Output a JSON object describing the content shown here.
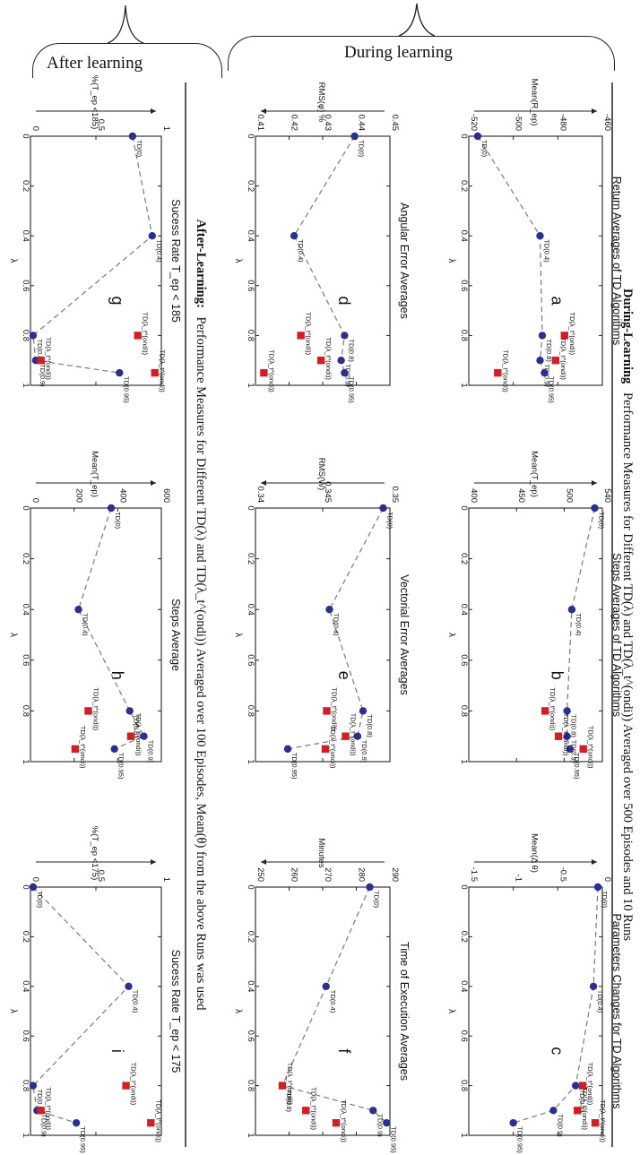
{
  "headers": {
    "after_learning": "After learning",
    "during_learning": "During learning"
  },
  "figure_titles": {
    "during_bold": "During-Learning",
    "during_rest": "Performance Measures for Different TD(λ) and TD(λ_t^(ondi)) Averaged over 500 Episodes and 10 Runs",
    "after_bold": "After-Learning:",
    "after_rest": "Performance Measures for Different TD(λ) and TD(λ_t^(ondi)) Averaged over 100 Episodes, Mean(θ) from the above Runs was used"
  },
  "colors": {
    "blue_marker": "#2b2f8f",
    "red_marker": "#d21f26",
    "dash_line": "#7a7a7a"
  },
  "chart_data": [
    {
      "id": "a",
      "type": "line",
      "letter": "a",
      "title": "Return Averages of TD Algorithms",
      "xlabel": "λ",
      "ylabel": "Mean(R_ep)",
      "xlim": [
        0,
        1
      ],
      "ylim": [
        -520,
        -460
      ],
      "xticks": [
        "0",
        "0.2",
        "0.4",
        "0.6",
        "0.8",
        "1"
      ],
      "yticks": [
        -520,
        -500,
        -480,
        -460
      ],
      "series": [
        {
          "kind": "td",
          "x": [
            0,
            0.4,
            0.8,
            0.9,
            0.95
          ],
          "y": [
            -516,
            -488,
            -487,
            -488,
            -486
          ],
          "labels": [
            "TD(0)",
            "TD(0.4)",
            "TD(0.8)",
            "TD(0.9)",
            "TD(0.95)"
          ]
        },
        {
          "kind": "adaptive",
          "x": [
            0.8,
            0.9,
            0.95
          ],
          "y": [
            -477,
            -481,
            -507
          ],
          "labels": [
            "TD(λ_t^(ondi))",
            "TD(λ_t^(ondi))",
            "TD(λ_t^(ondi))"
          ]
        }
      ]
    },
    {
      "id": "b",
      "type": "line",
      "letter": "b",
      "title": "Steps Averages of TD Algorithms",
      "xlabel": "λ",
      "ylabel": "Mean(T_ep)",
      "xlim": [
        0,
        1
      ],
      "ylim": [
        400,
        540
      ],
      "xticks": [
        "0",
        "0.2",
        "0.4",
        "0.6",
        "0.8",
        "1"
      ],
      "yticks": [
        400,
        450,
        500,
        540
      ],
      "series": [
        {
          "kind": "td",
          "x": [
            0,
            0.4,
            0.8,
            0.9,
            0.95
          ],
          "y": [
            532,
            508,
            503,
            503,
            506
          ],
          "labels": [
            "TD(0)",
            "TD(0.4)",
            "TD(0.8)",
            "TD(0.9)",
            "TD(0.95)"
          ]
        },
        {
          "kind": "adaptive",
          "x": [
            0.8,
            0.9,
            0.95
          ],
          "y": [
            480,
            494,
            520
          ],
          "labels": [
            "TD(λ_t^(ondi))",
            "TD(λ_t^(ondi))",
            "TD(λ_t^(ondi))"
          ]
        }
      ]
    },
    {
      "id": "c",
      "type": "line",
      "letter": "c",
      "title": "Parameters Changes for TD Algorithms",
      "xlabel": "λ",
      "ylabel": "Mean(Δ θ)",
      "xlim": [
        0,
        1
      ],
      "ylim": [
        -1.5,
        0
      ],
      "xticks": [
        "0",
        "0.2",
        "0.4",
        "0.6",
        "0.8",
        "1"
      ],
      "yticks": [
        -1.5,
        -1,
        -0.5,
        0
      ],
      "series": [
        {
          "kind": "td",
          "x": [
            0,
            0.4,
            0.8,
            0.9,
            0.95
          ],
          "y": [
            -0.05,
            -0.1,
            -0.3,
            -0.55,
            -1.0
          ],
          "labels": [
            "TD(0)",
            "TD(0.4)",
            "TD(0.8)",
            "TD(0.9)",
            "TD(0.95)"
          ]
        },
        {
          "kind": "adaptive",
          "x": [
            0.8,
            0.9,
            0.95
          ],
          "y": [
            -0.22,
            -0.28,
            -0.08
          ],
          "labels": [
            "TD(λ_t^(ondi))",
            "TD(λ_t^(ondi))",
            "TD(λ_t^(ondi))"
          ]
        }
      ]
    },
    {
      "id": "d",
      "type": "line",
      "letter": "d",
      "title": "Angular Error Averages",
      "xlabel": "λ",
      "ylabel": "RMS(φ) %",
      "xlim": [
        0,
        1
      ],
      "ylim": [
        0.41,
        0.45
      ],
      "xticks": [
        "0",
        "0.2",
        "0.4",
        "0.6",
        "0.8",
        "1"
      ],
      "yticks": [
        0.41,
        0.42,
        0.43,
        0.44,
        0.45
      ],
      "series": [
        {
          "kind": "td",
          "x": [
            0,
            0.4,
            0.8,
            0.9,
            0.95
          ],
          "y": [
            0.4395,
            0.4215,
            0.4365,
            0.4355,
            0.4365
          ],
          "labels": [
            "TD(0)",
            "TD(0.4)",
            "TD(0.8)",
            "TD(0.9)",
            "TD(0.95)"
          ]
        },
        {
          "kind": "adaptive",
          "x": [
            0.8,
            0.9,
            0.95
          ],
          "y": [
            0.4235,
            0.4295,
            0.4125
          ],
          "labels": [
            "TD(λ_t^(ondi))",
            "TD(λ_t^(ondi))",
            "TD(λ_t^(ondi))"
          ]
        }
      ]
    },
    {
      "id": "e",
      "type": "line",
      "letter": "e",
      "title": "Vectorial Error Averages",
      "xlabel": "λ",
      "ylabel": "RMS(W)",
      "xlim": [
        0,
        1
      ],
      "ylim": [
        0.34,
        0.35
      ],
      "xticks": [
        "0",
        "0.2",
        "0.4",
        "0.6",
        "0.8",
        "1"
      ],
      "yticks": [
        0.34,
        0.345,
        0.35
      ],
      "series": [
        {
          "kind": "td",
          "x": [
            0,
            0.4,
            0.8,
            0.9,
            0.95
          ],
          "y": [
            0.3495,
            0.3455,
            0.348,
            0.3476,
            0.3424
          ],
          "labels": [
            "TD(0)",
            "TD(0.4)",
            "TD(0.8)",
            "TD(0.9)",
            "TD(0.95)"
          ]
        },
        {
          "kind": "adaptive",
          "x": [
            0.8,
            0.9,
            0.95
          ],
          "y": [
            0.3453,
            0.3467,
            0.3452
          ],
          "labels": [
            "TD(λ_t^(ondi))",
            "TD(λ_t^(ondi))",
            "TD(λ_t^(ondi))"
          ]
        }
      ]
    },
    {
      "id": "f",
      "type": "line",
      "letter": "f",
      "title": "Time of Execution Averages",
      "xlabel": "λ",
      "ylabel": "Minutes",
      "xlim": [
        0,
        1
      ],
      "ylim": [
        250,
        290
      ],
      "xticks": [
        "0",
        "0.2",
        "0.4",
        "0.6",
        "0.8",
        "1"
      ],
      "yticks": [
        250,
        260,
        270,
        280,
        290
      ],
      "series": [
        {
          "kind": "td",
          "x": [
            0,
            0.4,
            0.8,
            0.9,
            0.95
          ],
          "y": [
            284,
            271,
            258,
            285,
            289
          ],
          "labels": [
            "TD(0)",
            "TD(0.4)",
            "TD(0.8)",
            "TD(0.9)",
            "TD(0.95)"
          ]
        },
        {
          "kind": "adaptive",
          "x": [
            0.8,
            0.9,
            0.95
          ],
          "y": [
            258,
            265,
            274
          ],
          "labels": [
            "TD(λ_t^(ondi))",
            "TD(λ_t^(ondi))",
            "TD(λ_t^(ondi))"
          ]
        }
      ]
    },
    {
      "id": "g",
      "type": "line",
      "letter": "g",
      "title": "Sucess Rate  T_ep < 185",
      "xlabel": "λ",
      "ylabel": "%(T_ep <185)",
      "xlim": [
        0,
        1
      ],
      "ylim": [
        0,
        1
      ],
      "xticks": [
        "0",
        "0.2",
        "0.4",
        "0.6",
        "0.8",
        "1"
      ],
      "yticks": [
        0,
        0.5,
        1
      ],
      "series": [
        {
          "kind": "td",
          "x": [
            0,
            0.4,
            0.8,
            0.9,
            0.95
          ],
          "y": [
            0.78,
            0.93,
            0.02,
            0.04,
            0.68
          ],
          "labels": [
            "TD(0)",
            "TD(0.4)",
            "TD(0.8)",
            "TD(0.9)",
            "TD(0.95)"
          ]
        },
        {
          "kind": "adaptive",
          "x": [
            0.8,
            0.9,
            0.95
          ],
          "y": [
            0.82,
            0.08,
            0.95
          ],
          "labels": [
            "TD(λ_t^(ondi))",
            "TD(λ_t^(ondi))",
            "TD(λ_t^(ondi))"
          ]
        }
      ]
    },
    {
      "id": "h",
      "type": "line",
      "letter": "h",
      "title": "Steps Average",
      "xlabel": "λ",
      "ylabel": "Mean(T_ep)",
      "xlim": [
        0,
        1
      ],
      "ylim": [
        0,
        600
      ],
      "xticks": [
        "0",
        "0.2",
        "0.4",
        "0.6",
        "0.8",
        "1"
      ],
      "yticks": [
        0,
        200,
        400,
        600
      ],
      "series": [
        {
          "kind": "td",
          "x": [
            0,
            0.4,
            0.8,
            0.9,
            0.95
          ],
          "y": [
            370,
            220,
            455,
            520,
            385
          ],
          "labels": [
            "TD(0)",
            "TD(0.4)",
            "TD(0.8)",
            "TD(0.9)",
            "TD(0.95)"
          ]
        },
        {
          "kind": "adaptive",
          "x": [
            0.8,
            0.9,
            0.95
          ],
          "y": [
            265,
            460,
            205
          ],
          "labels": [
            "TD(λ_t^(ondi))",
            "TD(λ_t^(ondi))",
            "TD(λ_t^(ondi))"
          ]
        }
      ]
    },
    {
      "id": "i",
      "type": "line",
      "letter": "i",
      "title": "Sucess Rate  T_ep < 175",
      "xlabel": "λ",
      "ylabel": "%(T_ep <175)",
      "xlim": [
        0,
        1
      ],
      "ylim": [
        0,
        1
      ],
      "xticks": [
        "0",
        "0.2",
        "0.4",
        "0.6",
        "0.8",
        "1"
      ],
      "yticks": [
        0,
        0.5,
        1
      ],
      "series": [
        {
          "kind": "td",
          "x": [
            0,
            0.4,
            0.8,
            0.9,
            0.95
          ],
          "y": [
            0.02,
            0.75,
            0.02,
            0.05,
            0.35
          ],
          "labels": [
            "TD(0)",
            "TD(0.4)",
            "TD(0.8)",
            "TD(0.9)",
            "TD(0.95)"
          ]
        },
        {
          "kind": "adaptive",
          "x": [
            0.8,
            0.9,
            0.95
          ],
          "y": [
            0.73,
            0.08,
            0.92
          ],
          "labels": [
            "TD(λ_t^(ondi))",
            "TD(λ_t^(ondi))",
            "TD(λ_t^(ondi))"
          ]
        }
      ]
    }
  ]
}
